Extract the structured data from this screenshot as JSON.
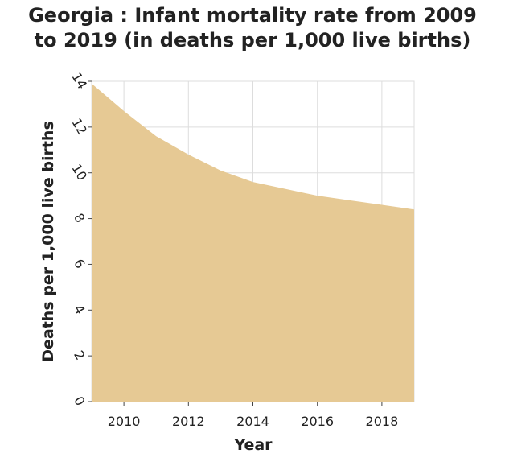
{
  "chart_data": {
    "type": "area",
    "title_line1": "Georgia : Infant mortality rate from 2009",
    "title_line2": "to 2019 (in deaths per 1,000 live births)",
    "xlabel": "Year",
    "ylabel": "Deaths per 1,000 live births",
    "x": [
      2009,
      2010,
      2011,
      2012,
      2013,
      2014,
      2015,
      2016,
      2017,
      2018,
      2019
    ],
    "values": [
      13.9,
      12.7,
      11.6,
      10.8,
      10.1,
      9.6,
      9.3,
      9.0,
      8.8,
      8.6,
      8.4
    ],
    "xlim": [
      2009,
      2019
    ],
    "ylim": [
      0,
      14
    ],
    "xticks": [
      2010,
      2012,
      2014,
      2016,
      2018
    ],
    "yticks": [
      0,
      2,
      4,
      6,
      8,
      10,
      12,
      14
    ],
    "grid": true,
    "fill_color": "#e6c994"
  }
}
